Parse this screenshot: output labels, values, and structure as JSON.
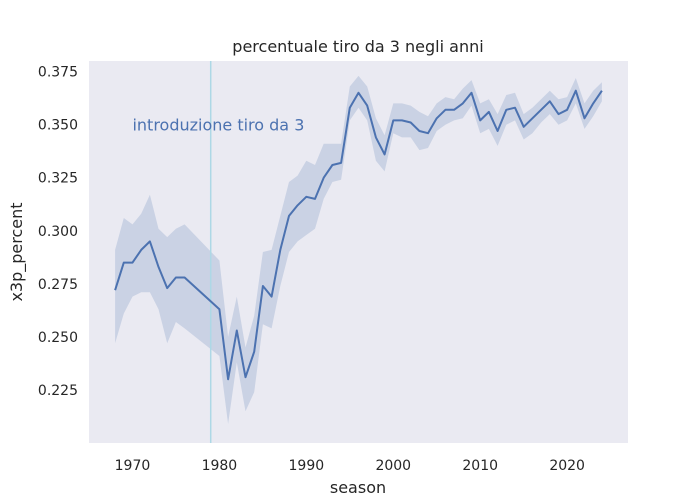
{
  "chart_data": {
    "type": "line",
    "title": "percentuale tiro da 3 negli anni",
    "xlabel": "season",
    "ylabel": "x3p_percent",
    "xlim": [
      1965,
      2027
    ],
    "ylim": [
      0.2,
      0.38
    ],
    "xticks": [
      1970,
      1980,
      1990,
      2000,
      2010,
      2020
    ],
    "xtick_labels": [
      "1970",
      "1980",
      "1990",
      "2000",
      "2010",
      "2020"
    ],
    "yticks": [
      0.225,
      0.25,
      0.275,
      0.3,
      0.325,
      0.35,
      0.375
    ],
    "ytick_labels": [
      "0.225",
      "0.250",
      "0.275",
      "0.300",
      "0.325",
      "0.350",
      "0.375"
    ],
    "grid": false,
    "background": "#eaeaf2",
    "line_color": "#4c72b0",
    "band_color": "#4c72b0",
    "vline": {
      "x": 1979,
      "color": "#add8e6"
    },
    "annotation": {
      "text": "introduzione tiro da 3",
      "x": 1970,
      "y": 0.35,
      "color": "#4c72b0"
    },
    "series": [
      {
        "x": [
          1968,
          1969,
          1970,
          1971,
          1972,
          1973,
          1974,
          1975,
          1976,
          1980,
          1981,
          1982,
          1983,
          1984,
          1985,
          1986,
          1987,
          1988,
          1989,
          1990,
          1991,
          1992,
          1993,
          1994,
          1995,
          1996,
          1997,
          1998,
          1999,
          2000,
          2001,
          2002,
          2003,
          2004,
          2005,
          2006,
          2007,
          2008,
          2009,
          2010,
          2011,
          2012,
          2013,
          2014,
          2015,
          2016,
          2017,
          2018,
          2019,
          2020,
          2021,
          2022,
          2023,
          2024
        ],
        "y": [
          0.272,
          0.285,
          0.285,
          0.291,
          0.295,
          0.283,
          0.273,
          0.278,
          0.278,
          0.263,
          0.23,
          0.253,
          0.231,
          0.243,
          0.274,
          0.269,
          0.291,
          0.307,
          0.312,
          0.316,
          0.315,
          0.325,
          0.331,
          0.332,
          0.358,
          0.365,
          0.359,
          0.344,
          0.336,
          0.352,
          0.352,
          0.351,
          0.347,
          0.346,
          0.353,
          0.357,
          0.357,
          0.36,
          0.365,
          0.352,
          0.356,
          0.347,
          0.357,
          0.358,
          0.349,
          0.353,
          0.357,
          0.361,
          0.355,
          0.357,
          0.366,
          0.353,
          0.36,
          0.366
        ],
        "lower": [
          0.247,
          0.261,
          0.269,
          0.271,
          0.271,
          0.263,
          0.247,
          0.257,
          0.254,
          0.241,
          0.209,
          0.238,
          0.215,
          0.224,
          0.256,
          0.254,
          0.274,
          0.29,
          0.295,
          0.298,
          0.301,
          0.315,
          0.323,
          0.324,
          0.352,
          0.358,
          0.352,
          0.333,
          0.328,
          0.346,
          0.344,
          0.344,
          0.338,
          0.339,
          0.347,
          0.35,
          0.352,
          0.353,
          0.359,
          0.346,
          0.348,
          0.34,
          0.35,
          0.352,
          0.343,
          0.346,
          0.351,
          0.355,
          0.35,
          0.352,
          0.36,
          0.348,
          0.354,
          0.361
        ],
        "upper": [
          0.291,
          0.306,
          0.303,
          0.308,
          0.317,
          0.301,
          0.297,
          0.301,
          0.303,
          0.286,
          0.25,
          0.269,
          0.245,
          0.26,
          0.29,
          0.291,
          0.307,
          0.323,
          0.326,
          0.333,
          0.331,
          0.341,
          0.341,
          0.341,
          0.368,
          0.373,
          0.368,
          0.353,
          0.345,
          0.36,
          0.36,
          0.359,
          0.356,
          0.354,
          0.36,
          0.363,
          0.362,
          0.367,
          0.371,
          0.36,
          0.362,
          0.355,
          0.364,
          0.365,
          0.355,
          0.358,
          0.362,
          0.366,
          0.362,
          0.363,
          0.372,
          0.36,
          0.366,
          0.37
        ]
      }
    ]
  }
}
